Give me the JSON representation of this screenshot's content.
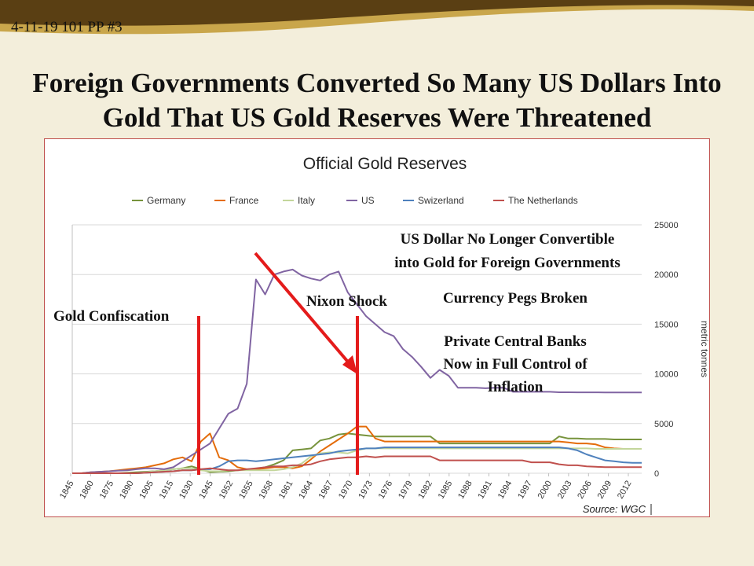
{
  "header": {
    "slide_label": "4-11-19 101 PP #3"
  },
  "slide": {
    "title_line1": "Foreign Governments Converted So Many US Dollars Into",
    "title_line2": "Gold That US Gold Reserves Were Threatened"
  },
  "annotations": {
    "gold_confiscation": "Gold Confiscation",
    "nixon_shock": "Nixon Shock",
    "us_dollar_line1": "US Dollar No Longer Convertible",
    "us_dollar_line2": "into Gold for Foreign Governments",
    "currency_pegs": "Currency Pegs Broken",
    "central_banks_line1": "Private Central Banks",
    "central_banks_line2": "Now in Full Control of",
    "central_banks_line3": "Inflation"
  },
  "colors": {
    "band_brown": "#5a3f13",
    "band_gold": "#c9a64b",
    "background": "#f3eedb",
    "frame_border": "#c0504d",
    "annotation_red": "#e41b1b"
  },
  "chart_data": {
    "type": "line",
    "title": "Official Gold Reserves",
    "ylabel": "metric tonnes",
    "source": "Source: WGC",
    "ylim": [
      0,
      25000
    ],
    "yticks": [
      "0",
      "5000",
      "10000",
      "15000",
      "20000",
      "25000"
    ],
    "x_tick_labels": [
      "1845",
      "1860",
      "1875",
      "1890",
      "1905",
      "1915",
      "1930",
      "1945",
      "1952",
      "1955",
      "1958",
      "1961",
      "1964",
      "1967",
      "1970",
      "1973",
      "1976",
      "1979",
      "1982",
      "1985",
      "1988",
      "1991",
      "1994",
      "1997",
      "2000",
      "2003",
      "2006",
      "2009",
      "2012"
    ],
    "grid": true,
    "legend_position": "top",
    "series": [
      {
        "name": "Germany",
        "color": "#77933c",
        "values": [
          0,
          0,
          0,
          0,
          0,
          0,
          50,
          100,
          150,
          200,
          300,
          400,
          500,
          700,
          400,
          100,
          150,
          200,
          300,
          350,
          400,
          600,
          900,
          1300,
          2300,
          2400,
          2500,
          3300,
          3500,
          3900,
          4000,
          3900,
          3800,
          3700,
          3700,
          3700,
          3700,
          3700,
          3700,
          3700,
          3000,
          3000,
          3000,
          3000,
          3000,
          3000,
          3000,
          3000,
          3000,
          3000,
          3000,
          3000,
          3000,
          3700,
          3500,
          3500,
          3450,
          3450,
          3450,
          3400,
          3400,
          3400,
          3400
        ]
      },
      {
        "name": "France",
        "color": "#e46c0a",
        "values": [
          0,
          0,
          100,
          150,
          200,
          300,
          400,
          500,
          600,
          800,
          1000,
          1400,
          1600,
          1200,
          3200,
          4000,
          1600,
          1300,
          600,
          400,
          400,
          500,
          600,
          600,
          500,
          700,
          1400,
          2200,
          2800,
          3400,
          4000,
          4700,
          4700,
          3500,
          3200,
          3200,
          3200,
          3200,
          3200,
          3200,
          3200,
          3200,
          3200,
          3200,
          3200,
          3200,
          3200,
          3200,
          3200,
          3200,
          3200,
          3200,
          3200,
          3200,
          3100,
          3000,
          3000,
          2900,
          2600,
          2500,
          2450,
          2450,
          2450
        ]
      },
      {
        "name": "Italy",
        "color": "#c3d69b",
        "values": [
          0,
          0,
          0,
          0,
          0,
          0,
          0,
          0,
          100,
          200,
          300,
          400,
          500,
          500,
          300,
          200,
          200,
          300,
          300,
          300,
          300,
          300,
          300,
          400,
          600,
          1000,
          1700,
          2000,
          2100,
          2100,
          2000,
          2300,
          2500,
          2500,
          2500,
          2500,
          2500,
          2500,
          2500,
          2500,
          2500,
          2500,
          2500,
          2500,
          2500,
          2500,
          2500,
          2500,
          2500,
          2500,
          2500,
          2500,
          2500,
          2500,
          2500,
          2500,
          2500,
          2450,
          2450,
          2450,
          2450,
          2450,
          2450
        ]
      },
      {
        "name": "US",
        "color": "#8064a2",
        "values": [
          0,
          0,
          100,
          150,
          200,
          250,
          300,
          400,
          500,
          500,
          400,
          600,
          1200,
          1800,
          2400,
          3000,
          4500,
          6000,
          6500,
          9000,
          19500,
          18000,
          20000,
          20300,
          20500,
          19900,
          19600,
          19400,
          20000,
          20300,
          18200,
          17000,
          15800,
          15000,
          14200,
          13800,
          12500,
          11700,
          10700,
          9600,
          10400,
          9800,
          8600,
          8600,
          8600,
          8550,
          8600,
          8600,
          8200,
          8200,
          8200,
          8200,
          8200,
          8150,
          8150,
          8140,
          8140,
          8140,
          8135,
          8135,
          8135,
          8135,
          8135
        ]
      },
      {
        "name": "Swizerland",
        "color": "#4f81bd",
        "values": [
          0,
          0,
          0,
          0,
          0,
          0,
          0,
          0,
          50,
          100,
          150,
          200,
          300,
          300,
          400,
          400,
          700,
          1200,
          1300,
          1300,
          1200,
          1300,
          1400,
          1500,
          1600,
          1700,
          1800,
          1900,
          2000,
          2200,
          2300,
          2400,
          2500,
          2500,
          2600,
          2600,
          2600,
          2600,
          2600,
          2600,
          2600,
          2600,
          2600,
          2600,
          2600,
          2600,
          2600,
          2600,
          2600,
          2600,
          2600,
          2600,
          2600,
          2600,
          2500,
          2300,
          1900,
          1600,
          1300,
          1200,
          1100,
          1050,
          1050
        ]
      },
      {
        "name": "The Netherlands",
        "color": "#c0504d",
        "values": [
          0,
          0,
          0,
          0,
          0,
          0,
          0,
          0,
          50,
          100,
          150,
          200,
          300,
          300,
          400,
          500,
          400,
          300,
          300,
          400,
          500,
          600,
          700,
          700,
          800,
          800,
          900,
          1200,
          1400,
          1500,
          1600,
          1600,
          1700,
          1600,
          1700,
          1700,
          1700,
          1700,
          1700,
          1700,
          1300,
          1300,
          1300,
          1300,
          1300,
          1300,
          1300,
          1300,
          1300,
          1300,
          1100,
          1100,
          1100,
          900,
          800,
          800,
          700,
          650,
          620,
          612,
          612,
          612,
          612
        ]
      }
    ]
  }
}
